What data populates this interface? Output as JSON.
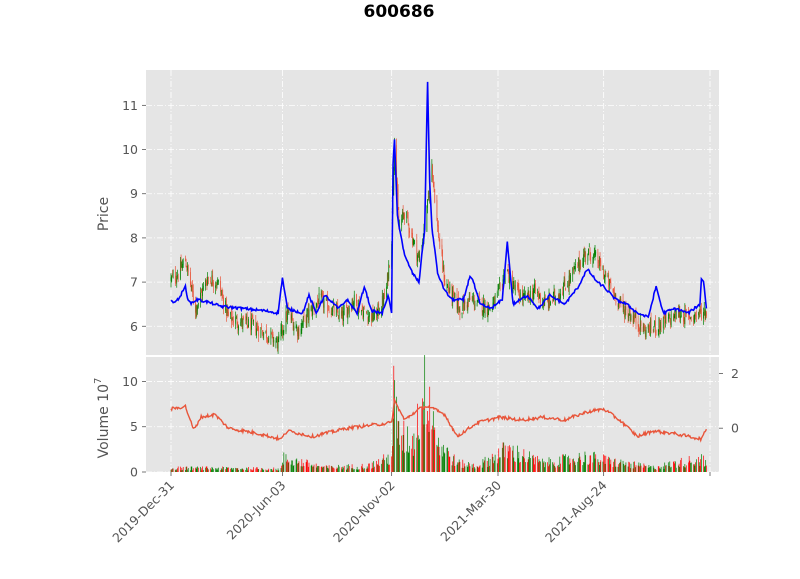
{
  "chart_data": {
    "type": "candlestick",
    "title": "600686",
    "price_panel": {
      "ylabel": "Price",
      "yticks": [
        6,
        7,
        8,
        9,
        10,
        11
      ],
      "ylim": [
        5.35,
        11.8
      ],
      "up_color": "#008000",
      "down_color": "#e8553a",
      "overlay_series_color": "#0000ff",
      "approx_close_path": [
        [
          "2019-12-31",
          7.05
        ],
        [
          "2020-01-10",
          7.2
        ],
        [
          "2020-01-20",
          7.5
        ],
        [
          "2020-02-03",
          6.4
        ],
        [
          "2020-02-20",
          7.1
        ],
        [
          "2020-03-05",
          7.0
        ],
        [
          "2020-03-20",
          6.2
        ],
        [
          "2020-04-05",
          6.1
        ],
        [
          "2020-04-25",
          6.0
        ],
        [
          "2020-05-15",
          5.8
        ],
        [
          "2020-05-28",
          5.6
        ],
        [
          "2020-06-10",
          6.3
        ],
        [
          "2020-06-25",
          5.9
        ],
        [
          "2020-07-10",
          6.3
        ],
        [
          "2020-07-25",
          6.6
        ],
        [
          "2020-08-10",
          6.4
        ],
        [
          "2020-08-25",
          6.2
        ],
        [
          "2020-09-10",
          6.6
        ],
        [
          "2020-09-25",
          6.3
        ],
        [
          "2020-10-10",
          6.2
        ],
        [
          "2020-10-25",
          6.7
        ],
        [
          "2020-11-02",
          8.0
        ],
        [
          "2020-11-06",
          10.3
        ],
        [
          "2020-11-12",
          8.2
        ],
        [
          "2020-11-20",
          8.6
        ],
        [
          "2020-12-01",
          8.0
        ],
        [
          "2020-12-10",
          7.5
        ],
        [
          "2020-12-20",
          8.4
        ],
        [
          "2020-12-28",
          9.7
        ],
        [
          "2021-01-05",
          8.2
        ],
        [
          "2021-01-15",
          7.0
        ],
        [
          "2021-01-25",
          6.7
        ],
        [
          "2021-02-05",
          6.4
        ],
        [
          "2021-02-20",
          6.6
        ],
        [
          "2021-03-05",
          6.5
        ],
        [
          "2021-03-20",
          6.4
        ],
        [
          "2021-03-30",
          6.7
        ],
        [
          "2021-04-10",
          7.3
        ],
        [
          "2021-04-20",
          6.9
        ],
        [
          "2021-05-05",
          6.6
        ],
        [
          "2021-05-20",
          6.8
        ],
        [
          "2021-06-05",
          6.5
        ],
        [
          "2021-06-20",
          6.7
        ],
        [
          "2021-07-05",
          7.0
        ],
        [
          "2021-07-20",
          7.4
        ],
        [
          "2021-08-01",
          7.7
        ],
        [
          "2021-08-15",
          7.5
        ],
        [
          "2021-08-24",
          7.2
        ],
        [
          "2021-09-05",
          6.8
        ],
        [
          "2021-09-20",
          6.4
        ],
        [
          "2021-10-05",
          6.2
        ],
        [
          "2021-10-20",
          5.9
        ],
        [
          "2021-11-05",
          6.0
        ],
        [
          "2021-11-20",
          6.1
        ],
        [
          "2021-12-05",
          6.3
        ],
        [
          "2021-12-20",
          6.2
        ],
        [
          "2022-01-05",
          6.3
        ],
        [
          "2022-01-14",
          6.35
        ]
      ],
      "approx_blue_series": [
        [
          "2019-12-31",
          6.55
        ],
        [
          "2020-01-10",
          6.6
        ],
        [
          "2020-01-20",
          6.9
        ],
        [
          "2020-01-25",
          6.5
        ],
        [
          "2020-02-05",
          6.6
        ],
        [
          "2020-02-20",
          6.55
        ],
        [
          "2020-03-10",
          6.45
        ],
        [
          "2020-04-10",
          6.4
        ],
        [
          "2020-05-10",
          6.35
        ],
        [
          "2020-05-28",
          6.3
        ],
        [
          "2020-06-03",
          7.1
        ],
        [
          "2020-06-10",
          6.4
        ],
        [
          "2020-07-01",
          6.3
        ],
        [
          "2020-07-10",
          6.7
        ],
        [
          "2020-07-20",
          6.3
        ],
        [
          "2020-08-01",
          6.7
        ],
        [
          "2020-08-20",
          6.4
        ],
        [
          "2020-09-01",
          6.6
        ],
        [
          "2020-09-15",
          6.3
        ],
        [
          "2020-09-25",
          6.9
        ],
        [
          "2020-10-05",
          6.35
        ],
        [
          "2020-10-20",
          6.3
        ],
        [
          "2020-10-28",
          6.7
        ],
        [
          "2020-11-02",
          6.3
        ],
        [
          "2020-11-04",
          9.7
        ],
        [
          "2020-11-06",
          10.2
        ],
        [
          "2020-11-10",
          8.5
        ],
        [
          "2020-11-20",
          7.6
        ],
        [
          "2020-12-01",
          7.2
        ],
        [
          "2020-12-10",
          7.0
        ],
        [
          "2020-12-18",
          8.2
        ],
        [
          "2020-12-22",
          11.5
        ],
        [
          "2020-12-26",
          8.5
        ],
        [
          "2021-01-05",
          7.2
        ],
        [
          "2021-01-15",
          6.8
        ],
        [
          "2021-01-25",
          6.6
        ],
        [
          "2021-02-10",
          6.6
        ],
        [
          "2021-02-20",
          7.2
        ],
        [
          "2021-03-05",
          6.5
        ],
        [
          "2021-03-20",
          6.4
        ],
        [
          "2021-04-05",
          6.6
        ],
        [
          "2021-04-12",
          7.9
        ],
        [
          "2021-04-20",
          6.5
        ],
        [
          "2021-05-10",
          6.7
        ],
        [
          "2021-05-25",
          6.4
        ],
        [
          "2021-06-10",
          6.7
        ],
        [
          "2021-07-01",
          6.5
        ],
        [
          "2021-07-20",
          6.9
        ],
        [
          "2021-08-01",
          7.3
        ],
        [
          "2021-08-15",
          7.0
        ],
        [
          "2021-08-24",
          6.9
        ],
        [
          "2021-09-10",
          6.6
        ],
        [
          "2021-09-25",
          6.5
        ],
        [
          "2021-10-10",
          6.3
        ],
        [
          "2021-10-25",
          6.2
        ],
        [
          "2021-11-05",
          6.9
        ],
        [
          "2021-11-15",
          6.3
        ],
        [
          "2021-12-01",
          6.4
        ],
        [
          "2021-12-20",
          6.3
        ],
        [
          "2022-01-05",
          6.5
        ],
        [
          "2022-01-08",
          7.35
        ],
        [
          "2022-01-14",
          6.4
        ]
      ]
    },
    "volume_panel": {
      "ylabel": "Volume",
      "exponent_label": "10",
      "exponent_power": "7",
      "yticks": [
        0,
        5,
        10
      ],
      "ylim": [
        0,
        12.7
      ],
      "right_yticks": [
        0,
        2
      ],
      "right_ylim": [
        -1.6,
        2.6
      ],
      "up_color": "#008000",
      "down_color": "#ff0000",
      "line_color": "#e8553a",
      "approx_volume_profile": [
        [
          "2019-12-31",
          0.5
        ],
        [
          "2020-03-01",
          0.5
        ],
        [
          "2020-06-01",
          0.4
        ],
        [
          "2020-06-05",
          1.8
        ],
        [
          "2020-08-01",
          0.6
        ],
        [
          "2020-10-01",
          0.8
        ],
        [
          "2020-11-02",
          2.0
        ],
        [
          "2020-11-05",
          10.0
        ],
        [
          "2020-11-12",
          5.0
        ],
        [
          "2020-12-01",
          4.0
        ],
        [
          "2020-12-22",
          12.3
        ],
        [
          "2021-01-05",
          4.0
        ],
        [
          "2021-02-01",
          1.2
        ],
        [
          "2021-03-01",
          0.8
        ],
        [
          "2021-04-12",
          3.0
        ],
        [
          "2021-06-01",
          1.2
        ],
        [
          "2021-08-01",
          2.0
        ],
        [
          "2021-09-15",
          1.2
        ],
        [
          "2021-11-01",
          0.6
        ],
        [
          "2022-01-08",
          1.8
        ],
        [
          "2022-01-14",
          1.0
        ]
      ],
      "approx_line_series": [
        [
          "2019-12-31",
          0.7
        ],
        [
          "2020-01-20",
          0.8
        ],
        [
          "2020-02-01",
          -0.1
        ],
        [
          "2020-02-10",
          0.4
        ],
        [
          "2020-03-01",
          0.5
        ],
        [
          "2020-03-20",
          0.0
        ],
        [
          "2020-05-01",
          -0.2
        ],
        [
          "2020-06-01",
          -0.4
        ],
        [
          "2020-06-10",
          -0.1
        ],
        [
          "2020-07-15",
          -0.3
        ],
        [
          "2020-09-01",
          0.0
        ],
        [
          "2020-10-01",
          0.1
        ],
        [
          "2020-11-02",
          0.2
        ],
        [
          "2020-11-06",
          1.0
        ],
        [
          "2020-11-20",
          0.3
        ],
        [
          "2020-12-10",
          0.7
        ],
        [
          "2020-12-22",
          0.8
        ],
        [
          "2021-01-15",
          0.5
        ],
        [
          "2021-02-01",
          -0.3
        ],
        [
          "2021-03-01",
          0.2
        ],
        [
          "2021-04-01",
          0.4
        ],
        [
          "2021-05-01",
          0.3
        ],
        [
          "2021-06-01",
          0.4
        ],
        [
          "2021-07-01",
          0.3
        ],
        [
          "2021-08-01",
          0.6
        ],
        [
          "2021-08-24",
          0.7
        ],
        [
          "2021-09-15",
          0.3
        ],
        [
          "2021-10-10",
          -0.3
        ],
        [
          "2021-11-01",
          -0.1
        ],
        [
          "2021-12-01",
          -0.2
        ],
        [
          "2022-01-08",
          -0.4
        ],
        [
          "2022-01-14",
          0.0
        ]
      ]
    },
    "x_axis": {
      "start_date": "2019-12-31",
      "end_date": "2022-01-14",
      "tick_labels": [
        "2019-Dec-31",
        "2020-Jun-03",
        "2020-Nov-02",
        "2021-Mar-30",
        "2021-Aug-24"
      ],
      "tick_dates": [
        "2019-12-31",
        "2020-06-03",
        "2020-11-02",
        "2021-03-30",
        "2021-08-24",
        "2022-01-19"
      ]
    },
    "grid": true,
    "style": "ggplot"
  }
}
